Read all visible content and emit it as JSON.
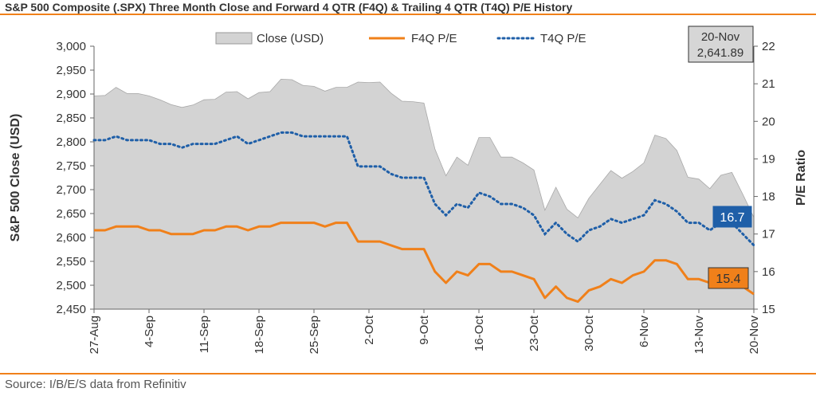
{
  "title": "S&P 500 Composite (.SPX) Three Month Close and Forward 4 QTR (F4Q) & Trailing 4 QTR (T4Q) P/E History",
  "source": "Source: I/B/E/S data from Refinitiv",
  "annotation_box": {
    "line1": "20-Nov",
    "line2": "2,641.89"
  },
  "end_labels": {
    "t4q": "16.7",
    "f4q": "15.4"
  },
  "colors": {
    "close_fill": "#d3d3d3",
    "f4q": "#f0801a",
    "t4q": "#1f5fa8",
    "accent_rule": "#f0801a",
    "t4q_label_bg": "#1f5fa8",
    "f4q_label_bg": "#f0801a"
  },
  "chart_data": {
    "type": "area",
    "ylabel_left": "S&P 500 Close (USD)",
    "ylabel_right": "P/E Ratio",
    "ylim_left": [
      2450,
      3000
    ],
    "ylim_right": [
      15,
      22
    ],
    "left_ticks": [
      "2,450",
      "2,500",
      "2,550",
      "2,600",
      "2,650",
      "2,700",
      "2,750",
      "2,800",
      "2,850",
      "2,900",
      "2,950",
      "3,000"
    ],
    "right_ticks": [
      "15",
      "16",
      "17",
      "18",
      "19",
      "20",
      "21",
      "22"
    ],
    "x_tick_labels": [
      "27-Aug",
      "4-Sep",
      "11-Sep",
      "18-Sep",
      "25-Sep",
      "2-Oct",
      "9-Oct",
      "16-Oct",
      "23-Oct",
      "30-Oct",
      "6-Nov",
      "13-Nov",
      "20-Nov"
    ],
    "legend": [
      "Close (USD)",
      "F4Q P/E",
      "T4Q P/E"
    ],
    "legend_position": "top",
    "grid": false,
    "series": [
      {
        "name": "Close (USD)",
        "axis": "left",
        "values": [
          2896,
          2897,
          2914,
          2901,
          2901,
          2896,
          2888,
          2878,
          2872,
          2877,
          2888,
          2889,
          2904,
          2905,
          2890,
          2903,
          2905,
          2931,
          2930,
          2918,
          2916,
          2906,
          2914,
          2914,
          2925,
          2924,
          2925,
          2902,
          2885,
          2884,
          2881,
          2785,
          2729,
          2768,
          2751,
          2809,
          2809,
          2768,
          2768,
          2756,
          2741,
          2657,
          2705,
          2659,
          2641,
          2682,
          2711,
          2740,
          2724,
          2738,
          2756,
          2814,
          2807,
          2782,
          2726,
          2722,
          2702,
          2730,
          2736,
          2690,
          2642
        ]
      },
      {
        "name": "F4Q P/E",
        "axis": "right",
        "values": [
          17.1,
          17.1,
          17.2,
          17.2,
          17.2,
          17.1,
          17.1,
          17.0,
          17.0,
          17.0,
          17.1,
          17.1,
          17.2,
          17.2,
          17.1,
          17.2,
          17.2,
          17.3,
          17.3,
          17.3,
          17.3,
          17.2,
          17.3,
          17.3,
          16.8,
          16.8,
          16.8,
          16.7,
          16.6,
          16.6,
          16.6,
          16.0,
          15.7,
          16.0,
          15.9,
          16.2,
          16.2,
          16.0,
          16.0,
          15.9,
          15.8,
          15.3,
          15.6,
          15.3,
          15.2,
          15.5,
          15.6,
          15.8,
          15.7,
          15.9,
          16.0,
          16.3,
          16.3,
          16.2,
          15.8,
          15.8,
          15.7,
          15.6,
          15.6,
          15.6,
          15.4
        ]
      },
      {
        "name": "T4Q P/E",
        "axis": "right",
        "values": [
          19.5,
          19.5,
          19.6,
          19.5,
          19.5,
          19.5,
          19.4,
          19.4,
          19.3,
          19.4,
          19.4,
          19.4,
          19.5,
          19.6,
          19.4,
          19.5,
          19.6,
          19.7,
          19.7,
          19.6,
          19.6,
          19.6,
          19.6,
          19.6,
          18.8,
          18.8,
          18.8,
          18.6,
          18.5,
          18.5,
          18.5,
          17.8,
          17.5,
          17.8,
          17.7,
          18.1,
          18.0,
          17.8,
          17.8,
          17.7,
          17.5,
          17.0,
          17.3,
          17.0,
          16.8,
          17.1,
          17.2,
          17.4,
          17.3,
          17.4,
          17.5,
          17.9,
          17.8,
          17.6,
          17.3,
          17.3,
          17.1,
          17.3,
          17.3,
          17.0,
          16.7
        ]
      }
    ]
  }
}
